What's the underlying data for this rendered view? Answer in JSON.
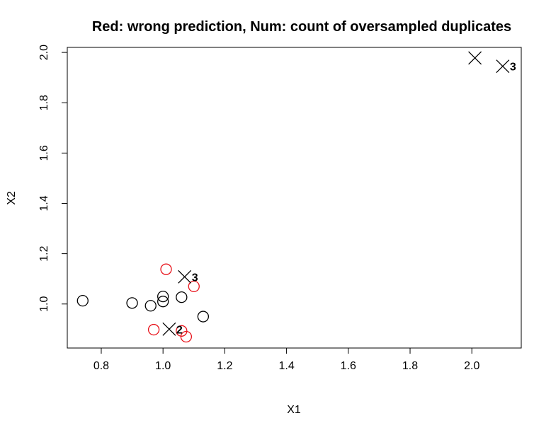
{
  "chart_data": {
    "type": "scatter",
    "title": "Red: wrong prediction, Num: count of oversampled duplicates",
    "xlabel": "X1",
    "ylabel": "X2",
    "xlim": [
      0.69,
      2.16
    ],
    "ylim": [
      0.825,
      2.02
    ],
    "xticks": [
      "0.8",
      "1.0",
      "1.2",
      "1.4",
      "1.6",
      "1.8",
      "2.0"
    ],
    "yticks": [
      "1.0",
      "1.2",
      "1.4",
      "1.6",
      "1.8",
      "2.0"
    ],
    "grid": false,
    "colors": {
      "correct": "#000000",
      "wrong": "#e8141c"
    },
    "points": [
      {
        "x": 0.74,
        "y": 1.013,
        "marker": "circle",
        "color": "correct",
        "label": ""
      },
      {
        "x": 0.9,
        "y": 1.004,
        "marker": "circle",
        "color": "correct",
        "label": ""
      },
      {
        "x": 0.96,
        "y": 0.993,
        "marker": "circle",
        "color": "correct",
        "label": ""
      },
      {
        "x": 1.0,
        "y": 1.01,
        "marker": "circle",
        "color": "correct",
        "label": ""
      },
      {
        "x": 1.0,
        "y": 1.03,
        "marker": "circle",
        "color": "correct",
        "label": ""
      },
      {
        "x": 1.06,
        "y": 1.027,
        "marker": "circle",
        "color": "correct",
        "label": ""
      },
      {
        "x": 1.13,
        "y": 0.95,
        "marker": "circle",
        "color": "correct",
        "label": ""
      },
      {
        "x": 1.01,
        "y": 1.138,
        "marker": "circle",
        "color": "wrong",
        "label": ""
      },
      {
        "x": 1.1,
        "y": 1.07,
        "marker": "circle",
        "color": "wrong",
        "label": ""
      },
      {
        "x": 0.97,
        "y": 0.898,
        "marker": "circle",
        "color": "wrong",
        "label": ""
      },
      {
        "x": 1.06,
        "y": 0.893,
        "marker": "circle",
        "color": "wrong",
        "label": ""
      },
      {
        "x": 1.075,
        "y": 0.87,
        "marker": "circle",
        "color": "wrong",
        "label": ""
      },
      {
        "x": 1.02,
        "y": 0.9,
        "marker": "cross",
        "color": "correct",
        "label": "2"
      },
      {
        "x": 1.07,
        "y": 1.108,
        "marker": "cross",
        "color": "correct",
        "label": "3"
      },
      {
        "x": 2.01,
        "y": 1.978,
        "marker": "cross",
        "color": "correct",
        "label": ""
      },
      {
        "x": 2.1,
        "y": 1.945,
        "marker": "cross",
        "color": "correct",
        "label": "3"
      }
    ]
  }
}
